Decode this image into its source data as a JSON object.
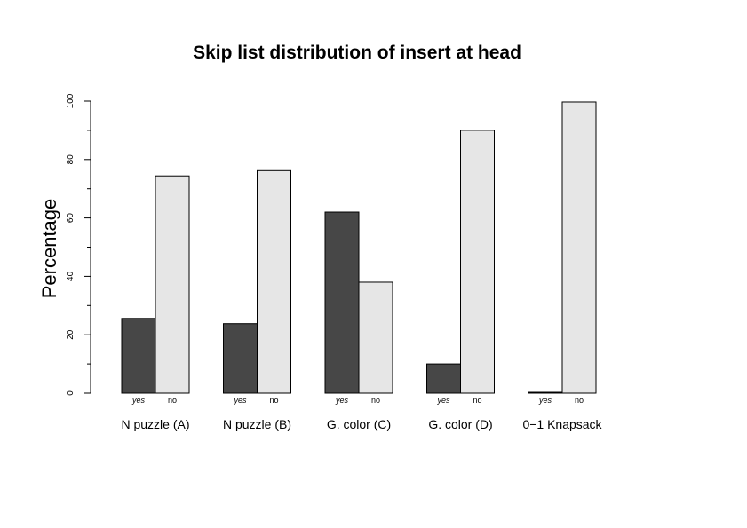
{
  "colors": {
    "background": "#ffffff",
    "yes_bar": "#474747",
    "no_bar": "#e6e6e6",
    "stroke": "#000000"
  },
  "chart_data": {
    "type": "bar",
    "title": "Skip list distribution of insert at head",
    "xlabel": "",
    "ylabel": "Percentage",
    "ylim": [
      0,
      100
    ],
    "yticks": [
      0,
      20,
      40,
      60,
      80,
      100
    ],
    "ytick_labels": [
      "0",
      "20",
      "40",
      "60",
      "80",
      "100"
    ],
    "grid": false,
    "legend": "none",
    "categories": [
      "N puzzle (A)",
      "N puzzle (B)",
      "G. color (C)",
      "G. color (D)",
      "0−1 Knapsack"
    ],
    "series": [
      {
        "name": "yes",
        "values": [
          25.6,
          23.8,
          62,
          10,
          0.3
        ]
      },
      {
        "name": "no",
        "values": [
          74.4,
          76.2,
          38,
          90,
          99.7
        ]
      }
    ]
  }
}
